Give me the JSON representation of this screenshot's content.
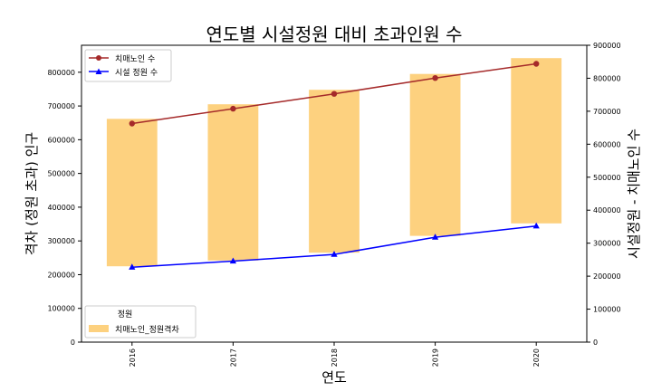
{
  "chart_data": {
    "type": "bar",
    "title": "연도별 시설정원 대비 초과인원 수",
    "xlabel": "연도",
    "ylabel_left": "격차 (정원 초과) 인구",
    "ylabel_right": "시설정원 - 치매노인 수",
    "categories": [
      "2016",
      "2017",
      "2018",
      "2019",
      "2020"
    ],
    "ylim_left": [
      0,
      880000
    ],
    "ylim_right": [
      0,
      900000
    ],
    "yticks_left": [
      "0",
      "100000",
      "200000",
      "300000",
      "400000",
      "500000",
      "600000",
      "700000",
      "800000"
    ],
    "yticks_right": [
      "0",
      "100000",
      "200000",
      "300000",
      "400000",
      "500000",
      "600000",
      "700000",
      "800000",
      "900000"
    ],
    "bars": {
      "name": "치매노인_정원격차",
      "color": "#FDD17F",
      "base": [
        225000,
        242000,
        265000,
        315000,
        352000
      ],
      "top": [
        662000,
        705000,
        748000,
        795000,
        842000
      ]
    },
    "series": [
      {
        "name": "치매노인 수",
        "color": "#A52A2A",
        "marker": "circle",
        "values": [
          648000,
          692000,
          736000,
          783000,
          825000
        ]
      },
      {
        "name": "시설 정원 수",
        "color": "#0000FF",
        "marker": "triangle",
        "values": [
          222000,
          240000,
          260000,
          311000,
          344000
        ]
      }
    ],
    "legend_top": {
      "placement": "top-left",
      "entries": [
        "치매노인 수",
        "시설 정원 수"
      ]
    },
    "legend_bottom": {
      "placement": "bottom-left",
      "title": "정원",
      "entries": [
        "치매노인_정원격차"
      ]
    },
    "grid": false
  }
}
